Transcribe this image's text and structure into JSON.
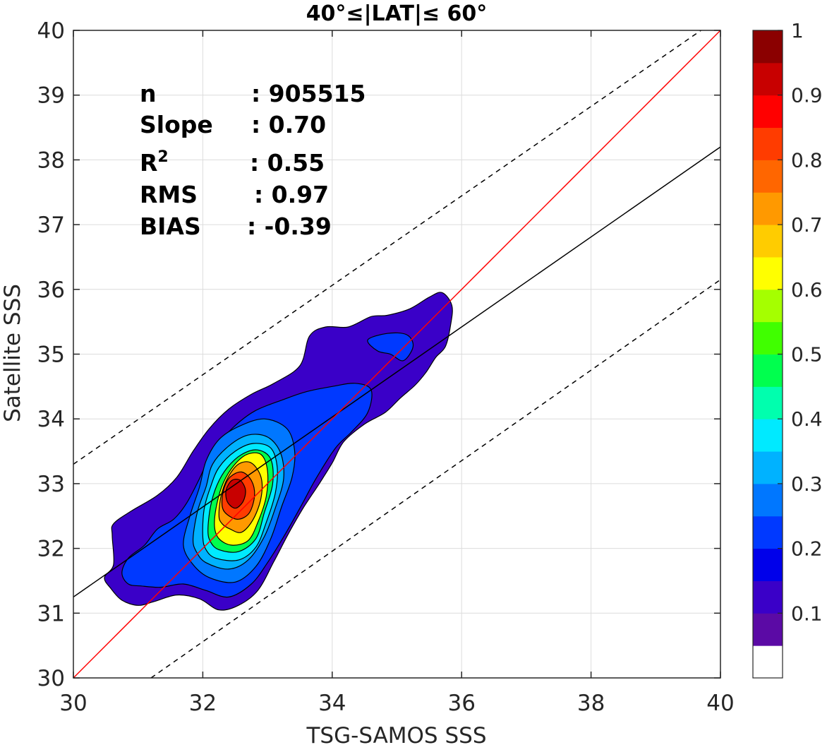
{
  "chart_data": {
    "type": "contour",
    "title": "40°≤|LAT|≤ 60°",
    "xlabel": "TSG-SAMOS SSS",
    "ylabel": "Satellite SSS",
    "xlim": [
      30,
      40
    ],
    "ylim": [
      30,
      40
    ],
    "xticks": [
      "30",
      "32",
      "34",
      "36",
      "38",
      "40"
    ],
    "yticks": [
      "30",
      "31",
      "32",
      "33",
      "34",
      "35",
      "36",
      "37",
      "38",
      "39",
      "40"
    ],
    "grid": true,
    "stats": {
      "n_label": "n",
      "n_value": ": 905515",
      "slope_label": "Slope",
      "slope_value": ": 0.70",
      "r2_label": "R",
      "r2_sup": "2",
      "r2_value": ": 0.55",
      "rms_label": "RMS",
      "rms_value": ": 0.97",
      "bias_label": "BIAS",
      "bias_value": ": -0.39"
    },
    "lines": {
      "one_to_one": {
        "color": "#ff0000",
        "points": [
          [
            30,
            30
          ],
          [
            40,
            40
          ]
        ]
      },
      "fit": {
        "color": "#000000",
        "style": "solid",
        "points": [
          [
            30,
            31.25
          ],
          [
            40,
            38.2
          ]
        ]
      },
      "upper_bound": {
        "color": "#000000",
        "style": "dashed",
        "points": [
          [
            30,
            33.3
          ],
          [
            39.7,
            40
          ]
        ]
      },
      "lower_bound": {
        "color": "#000000",
        "style": "dashed",
        "points": [
          [
            31.2,
            30
          ],
          [
            40,
            36.15
          ]
        ]
      }
    },
    "density_peak": {
      "x": 32.45,
      "y": 32.9
    },
    "colorbar": {
      "ticks": [
        "0.1",
        "0.2",
        "0.3",
        "0.4",
        "0.5",
        "0.6",
        "0.7",
        "0.8",
        "0.9",
        "1"
      ],
      "tick_values": [
        0.1,
        0.2,
        0.3,
        0.4,
        0.5,
        0.6,
        0.7,
        0.8,
        0.9,
        1.0
      ],
      "colors": [
        "#ffffff",
        "#5b0aa5",
        "#3a00c8",
        "#0000ea",
        "#0039ff",
        "#0077ff",
        "#00b2ff",
        "#00eaff",
        "#00ffae",
        "#00ff4e",
        "#40ff00",
        "#a5ff00",
        "#ffff00",
        "#ffcc00",
        "#ff9900",
        "#ff6600",
        "#ff3c00",
        "#ff0000",
        "#c80000",
        "#8b0000"
      ]
    },
    "contour_levels": [
      {
        "level": 0.05,
        "color": "#3a00c8",
        "region": [
          [
            30.48,
            31.55
          ],
          [
            30.62,
            31.75
          ],
          [
            30.6,
            32.2
          ],
          [
            30.62,
            32.38
          ],
          [
            30.9,
            32.58
          ],
          [
            31.3,
            32.82
          ],
          [
            31.6,
            33.1
          ],
          [
            31.85,
            33.5
          ],
          [
            32.1,
            33.85
          ],
          [
            32.4,
            34.15
          ],
          [
            32.75,
            34.38
          ],
          [
            33.1,
            34.55
          ],
          [
            33.5,
            34.82
          ],
          [
            33.65,
            35.28
          ],
          [
            33.9,
            35.42
          ],
          [
            34.25,
            35.42
          ],
          [
            34.6,
            35.58
          ],
          [
            34.85,
            35.6
          ],
          [
            35.2,
            35.7
          ],
          [
            35.5,
            35.88
          ],
          [
            35.7,
            35.95
          ],
          [
            35.85,
            35.75
          ],
          [
            35.83,
            35.45
          ],
          [
            35.75,
            35.12
          ],
          [
            35.6,
            34.95
          ],
          [
            35.45,
            34.72
          ],
          [
            35.28,
            34.52
          ],
          [
            35.05,
            34.32
          ],
          [
            34.82,
            34.1
          ],
          [
            34.5,
            33.92
          ],
          [
            34.18,
            33.65
          ],
          [
            34.0,
            33.32
          ],
          [
            33.8,
            33.0
          ],
          [
            33.55,
            32.62
          ],
          [
            33.32,
            32.22
          ],
          [
            33.1,
            31.8
          ],
          [
            32.85,
            31.35
          ],
          [
            32.55,
            31.12
          ],
          [
            32.25,
            31.05
          ],
          [
            31.95,
            31.22
          ],
          [
            31.6,
            31.28
          ],
          [
            31.25,
            31.18
          ],
          [
            31.0,
            31.12
          ],
          [
            30.75,
            31.2
          ],
          [
            30.58,
            31.38
          ]
        ]
      },
      {
        "level": 0.15,
        "color": "#0039ff",
        "region": [
          [
            30.75,
            31.62
          ],
          [
            30.85,
            31.85
          ],
          [
            31.1,
            32.05
          ],
          [
            31.3,
            32.3
          ],
          [
            31.55,
            32.45
          ],
          [
            31.75,
            32.7
          ],
          [
            31.95,
            33.08
          ],
          [
            32.15,
            33.5
          ],
          [
            32.45,
            33.85
          ],
          [
            32.8,
            34.12
          ],
          [
            33.25,
            34.3
          ],
          [
            33.6,
            34.42
          ],
          [
            34.0,
            34.5
          ],
          [
            34.35,
            34.55
          ],
          [
            34.6,
            34.45
          ],
          [
            34.55,
            34.1
          ],
          [
            34.3,
            33.8
          ],
          [
            34.05,
            33.55
          ],
          [
            33.75,
            33.08
          ],
          [
            33.5,
            32.62
          ],
          [
            33.25,
            32.18
          ],
          [
            33.0,
            31.78
          ],
          [
            32.75,
            31.45
          ],
          [
            32.4,
            31.25
          ],
          [
            32.05,
            31.35
          ],
          [
            31.7,
            31.45
          ],
          [
            31.35,
            31.4
          ],
          [
            31.05,
            31.42
          ],
          [
            30.85,
            31.45
          ]
        ]
      },
      {
        "level": 0.25,
        "color": "#0077ff",
        "region": [
          [
            31.7,
            32.05
          ],
          [
            31.8,
            32.5
          ],
          [
            31.95,
            32.95
          ],
          [
            32.05,
            33.35
          ],
          [
            32.25,
            33.68
          ],
          [
            32.55,
            33.88
          ],
          [
            32.95,
            34.0
          ],
          [
            33.3,
            33.85
          ],
          [
            33.42,
            33.5
          ],
          [
            33.38,
            33.1
          ],
          [
            33.22,
            32.65
          ],
          [
            33.05,
            32.15
          ],
          [
            32.82,
            31.72
          ],
          [
            32.5,
            31.48
          ],
          [
            32.1,
            31.55
          ],
          [
            31.85,
            31.75
          ]
        ]
      },
      {
        "level": 0.35,
        "color": "#00b2ff",
        "region": [
          [
            31.85,
            32.15
          ],
          [
            31.92,
            32.58
          ],
          [
            32.05,
            32.95
          ],
          [
            32.15,
            33.3
          ],
          [
            32.4,
            33.58
          ],
          [
            32.7,
            33.75
          ],
          [
            33.0,
            33.72
          ],
          [
            33.2,
            33.48
          ],
          [
            33.25,
            33.08
          ],
          [
            33.12,
            32.62
          ],
          [
            32.95,
            32.18
          ],
          [
            32.7,
            31.82
          ],
          [
            32.4,
            31.68
          ],
          [
            32.05,
            31.78
          ],
          [
            31.9,
            31.95
          ]
        ]
      },
      {
        "level": 0.45,
        "color": "#00eaff",
        "region": [
          [
            32.0,
            32.18
          ],
          [
            32.02,
            32.6
          ],
          [
            32.12,
            32.95
          ],
          [
            32.25,
            33.25
          ],
          [
            32.5,
            33.5
          ],
          [
            32.78,
            33.62
          ],
          [
            33.05,
            33.55
          ],
          [
            33.15,
            33.25
          ],
          [
            33.12,
            32.85
          ],
          [
            32.98,
            32.4
          ],
          [
            32.82,
            32.02
          ],
          [
            32.55,
            31.82
          ],
          [
            32.2,
            31.85
          ],
          [
            32.05,
            31.98
          ]
        ]
      },
      {
        "level": 0.55,
        "color": "#00ff4e",
        "region": [
          [
            32.08,
            32.28
          ],
          [
            32.12,
            32.65
          ],
          [
            32.22,
            32.98
          ],
          [
            32.38,
            33.25
          ],
          [
            32.6,
            33.45
          ],
          [
            32.85,
            33.52
          ],
          [
            33.05,
            33.38
          ],
          [
            33.08,
            33.0
          ],
          [
            32.95,
            32.55
          ],
          [
            32.82,
            32.15
          ],
          [
            32.55,
            31.95
          ],
          [
            32.25,
            31.98
          ],
          [
            32.12,
            32.1
          ]
        ]
      },
      {
        "level": 0.65,
        "color": "#ffff00",
        "region": [
          [
            32.18,
            32.35
          ],
          [
            32.22,
            32.7
          ],
          [
            32.32,
            33.02
          ],
          [
            32.48,
            33.28
          ],
          [
            32.68,
            33.45
          ],
          [
            32.9,
            33.45
          ],
          [
            33.0,
            33.2
          ],
          [
            32.98,
            32.8
          ],
          [
            32.85,
            32.4
          ],
          [
            32.7,
            32.12
          ],
          [
            32.45,
            32.05
          ],
          [
            32.25,
            32.15
          ]
        ]
      },
      {
        "level": 0.75,
        "color": "#ff9900",
        "region": [
          [
            32.25,
            32.5
          ],
          [
            32.28,
            32.8
          ],
          [
            32.38,
            33.08
          ],
          [
            32.55,
            33.3
          ],
          [
            32.75,
            33.32
          ],
          [
            32.9,
            33.1
          ],
          [
            32.9,
            32.78
          ],
          [
            32.78,
            32.45
          ],
          [
            32.6,
            32.25
          ],
          [
            32.42,
            32.3
          ],
          [
            32.3,
            32.38
          ]
        ]
      },
      {
        "level": 0.85,
        "color": "#ff3c00",
        "region": [
          [
            32.3,
            32.65
          ],
          [
            32.32,
            32.9
          ],
          [
            32.42,
            33.1
          ],
          [
            32.6,
            33.18
          ],
          [
            32.75,
            33.05
          ],
          [
            32.8,
            32.82
          ],
          [
            32.72,
            32.55
          ],
          [
            32.55,
            32.45
          ],
          [
            32.38,
            32.52
          ]
        ]
      },
      {
        "level": 0.95,
        "color": "#c80000",
        "region": [
          [
            32.38,
            32.72
          ],
          [
            32.36,
            32.9
          ],
          [
            32.45,
            33.05
          ],
          [
            32.58,
            33.05
          ],
          [
            32.66,
            32.9
          ],
          [
            32.62,
            32.72
          ],
          [
            32.5,
            32.62
          ]
        ]
      }
    ],
    "secondary_patches": [
      {
        "color": "#0039ff",
        "region": [
          [
            34.55,
            35.22
          ],
          [
            34.85,
            35.32
          ],
          [
            35.15,
            35.3
          ],
          [
            35.25,
            35.12
          ],
          [
            35.1,
            34.9
          ],
          [
            34.9,
            35.0
          ],
          [
            34.7,
            35.05
          ]
        ]
      },
      {
        "color": "#0077ff",
        "region": [
          [
            30.9,
            31.65
          ],
          [
            30.95,
            31.8
          ],
          [
            31.1,
            31.82
          ],
          [
            31.2,
            31.7
          ],
          [
            31.15,
            31.55
          ],
          [
            31.0,
            31.55
          ]
        ]
      }
    ]
  }
}
